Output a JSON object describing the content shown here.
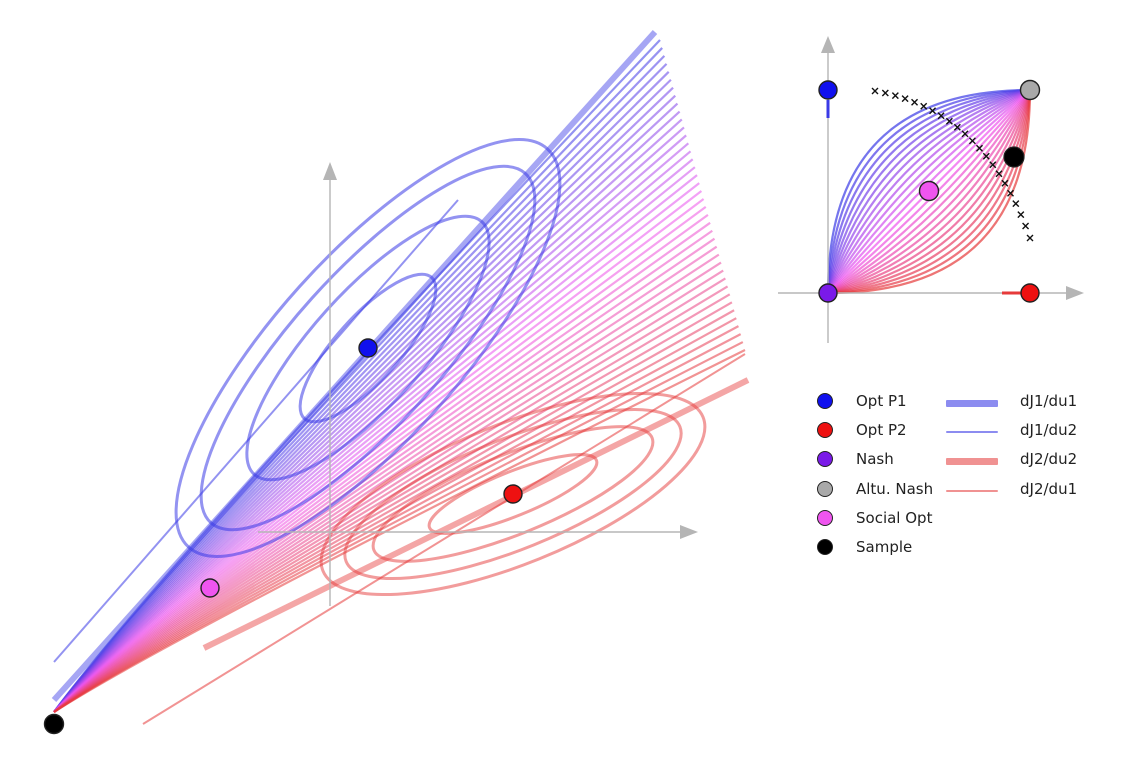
{
  "colors": {
    "player1": "#3a3ae6",
    "player2": "#e63a3a",
    "opt_p1": "#1010ee",
    "opt_p2": "#ee1111",
    "nash": "#7a1ae8",
    "altu_nash": "#a9a9a9",
    "social_opt": "#ef55ef",
    "sample": "#000000",
    "axis": "#b5b5b5",
    "pareto_marker": "#111111"
  },
  "diagram": {
    "main_panel": {
      "elements": [
        "gradient-field-lines",
        "p1-level-set-ellipses",
        "p2-level-set-ellipses",
        "axes",
        "equilibrium-points"
      ]
    },
    "inset_panel": {
      "elements": [
        "axes",
        "pareto-front-curves",
        "pareto-cross-markers",
        "equilibrium-points"
      ]
    }
  },
  "legend": {
    "points": [
      {
        "label": "Opt P1",
        "color": "#1010ee"
      },
      {
        "label": "Opt P2",
        "color": "#ee1111"
      },
      {
        "label": "Nash",
        "color": "#7a1ae8"
      },
      {
        "label": "Altu. Nash",
        "color": "#a9a9a9"
      },
      {
        "label": "Social Opt",
        "color": "#ef55ef"
      },
      {
        "label": "Sample",
        "color": "#000000"
      }
    ],
    "lines": [
      {
        "label": "dJ1/du1",
        "color": "#8c8cf0",
        "weight": "thick"
      },
      {
        "label": "dJ1/du2",
        "color": "#8c8cf0",
        "weight": "thin"
      },
      {
        "label": "dJ2/du2",
        "color": "#f09292",
        "weight": "thick"
      },
      {
        "label": "dJ2/du1",
        "color": "#f09292",
        "weight": "thin"
      }
    ]
  }
}
